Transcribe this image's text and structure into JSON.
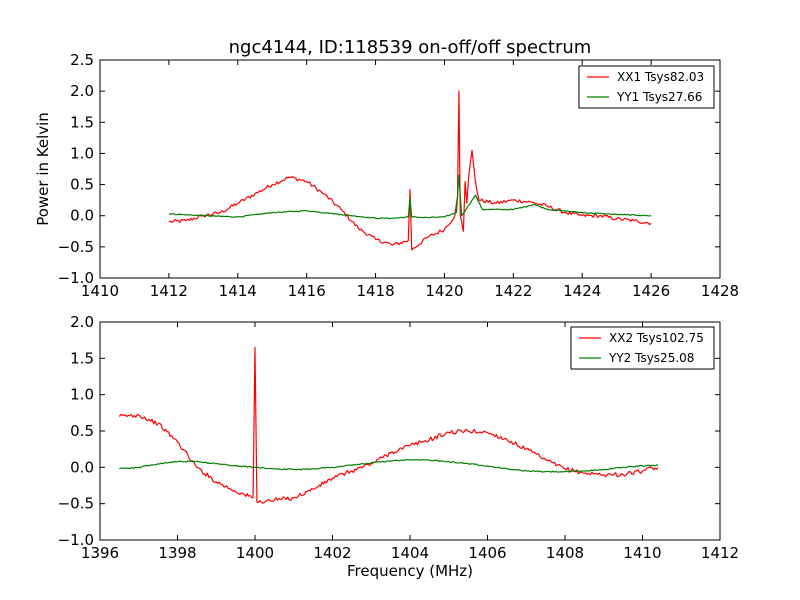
{
  "figure": {
    "title": "ngc4144, ID:118539 on-off/off spectrum",
    "xlabel": "Frequency (MHz)",
    "ylabel": "Power in Kelvin"
  },
  "colors": {
    "red": "#ff0000",
    "green": "#008000"
  },
  "chart_data": [
    {
      "type": "line",
      "title": "ngc4144, ID:118539 on-off/off spectrum",
      "xlabel": "",
      "ylabel": "Power in Kelvin",
      "xlim": [
        1410,
        1428
      ],
      "ylim": [
        -1.0,
        2.5
      ],
      "xticks": [
        1410,
        1412,
        1414,
        1416,
        1418,
        1420,
        1422,
        1424,
        1426,
        1428
      ],
      "yticks": [
        -1.0,
        -0.5,
        0.0,
        0.5,
        1.0,
        1.5,
        2.0,
        2.5
      ],
      "xtick_labels": [
        "1410",
        "1412",
        "1414",
        "1416",
        "1418",
        "1420",
        "1422",
        "1424",
        "1426",
        "1428"
      ],
      "ytick_labels": [
        "−1.0",
        "−0.5",
        "0.0",
        "0.5",
        "1.0",
        "1.5",
        "2.0",
        "2.5"
      ],
      "grid": false,
      "legend_position": "top-right",
      "series": [
        {
          "name": "XX1 Tsys82.03",
          "color": "#ff0000",
          "x": [
            1412.0,
            1412.5,
            1413.0,
            1413.5,
            1414.0,
            1414.5,
            1415.0,
            1415.5,
            1416.0,
            1416.5,
            1417.0,
            1417.5,
            1418.0,
            1418.5,
            1418.95,
            1419.0,
            1419.05,
            1419.5,
            1420.0,
            1420.3,
            1420.38,
            1420.42,
            1420.46,
            1420.55,
            1420.6,
            1420.65,
            1420.7,
            1420.8,
            1420.9,
            1421.0,
            1421.5,
            1422.0,
            1422.5,
            1423.0,
            1423.5,
            1424.0,
            1424.5,
            1425.0,
            1425.5,
            1426.0
          ],
          "y": [
            -0.1,
            -0.08,
            0.0,
            0.05,
            0.2,
            0.35,
            0.5,
            0.62,
            0.55,
            0.35,
            0.1,
            -0.2,
            -0.38,
            -0.47,
            -0.4,
            0.42,
            -0.55,
            -0.35,
            -0.22,
            0.0,
            0.3,
            2.0,
            0.0,
            -0.25,
            0.55,
            0.2,
            0.6,
            1.05,
            0.55,
            0.25,
            0.2,
            0.25,
            0.22,
            0.15,
            0.05,
            0.0,
            0.0,
            -0.05,
            -0.08,
            -0.12
          ]
        },
        {
          "name": "YY1 Tsys27.66",
          "color": "#008000",
          "x": [
            1412.0,
            1413.0,
            1414.0,
            1415.0,
            1416.0,
            1417.0,
            1418.0,
            1418.5,
            1418.95,
            1419.0,
            1419.05,
            1419.5,
            1420.0,
            1420.35,
            1420.42,
            1420.5,
            1420.9,
            1421.1,
            1422.0,
            1422.6,
            1423.0,
            1424.0,
            1425.0,
            1426.0
          ],
          "y": [
            0.03,
            0.0,
            -0.02,
            0.05,
            0.08,
            0.02,
            -0.04,
            -0.04,
            -0.02,
            0.28,
            -0.02,
            -0.03,
            -0.02,
            0.05,
            0.65,
            0.0,
            0.33,
            0.1,
            0.1,
            0.18,
            0.1,
            0.05,
            0.02,
            0.0
          ]
        }
      ]
    },
    {
      "type": "line",
      "title": "",
      "xlabel": "Frequency (MHz)",
      "ylabel": "",
      "xlim": [
        1396,
        1412
      ],
      "ylim": [
        -1.0,
        2.0
      ],
      "xticks": [
        1396,
        1398,
        1400,
        1402,
        1404,
        1406,
        1408,
        1410,
        1412
      ],
      "yticks": [
        -1.0,
        -0.5,
        0.0,
        0.5,
        1.0,
        1.5,
        2.0
      ],
      "xtick_labels": [
        "1396",
        "1398",
        "1400",
        "1402",
        "1404",
        "1406",
        "1408",
        "1410",
        "1412"
      ],
      "ytick_labels": [
        "−1.0",
        "−0.5",
        "0.0",
        "0.5",
        "1.0",
        "1.5",
        "2.0"
      ],
      "grid": false,
      "legend_position": "top-right",
      "series": [
        {
          "name": "XX2 Tsys102.75",
          "color": "#ff0000",
          "x": [
            1396.5,
            1397.0,
            1397.5,
            1398.0,
            1398.5,
            1399.0,
            1399.5,
            1399.95,
            1400.0,
            1400.05,
            1400.5,
            1401.0,
            1401.5,
            1402.0,
            1402.5,
            1403.0,
            1403.5,
            1404.0,
            1404.5,
            1405.0,
            1405.5,
            1406.0,
            1406.5,
            1407.0,
            1407.5,
            1408.0,
            1408.5,
            1409.0,
            1409.5,
            1410.0,
            1410.4
          ],
          "y": [
            0.7,
            0.72,
            0.6,
            0.35,
            0.0,
            -0.2,
            -0.33,
            -0.42,
            1.65,
            -0.48,
            -0.45,
            -0.42,
            -0.3,
            -0.15,
            -0.05,
            0.05,
            0.2,
            0.3,
            0.38,
            0.48,
            0.5,
            0.48,
            0.38,
            0.25,
            0.1,
            -0.02,
            -0.08,
            -0.1,
            -0.1,
            -0.05,
            0.0
          ]
        },
        {
          "name": "YY2 Tsys25.08",
          "color": "#008000",
          "x": [
            1396.5,
            1397.0,
            1397.5,
            1398.0,
            1398.5,
            1399.0,
            1399.5,
            1400.0,
            1400.5,
            1401.0,
            1401.5,
            1402.0,
            1402.5,
            1403.0,
            1403.5,
            1404.0,
            1404.5,
            1405.0,
            1405.5,
            1406.0,
            1406.5,
            1407.0,
            1407.5,
            1408.0,
            1408.5,
            1409.0,
            1409.5,
            1410.0,
            1410.4
          ],
          "y": [
            -0.02,
            0.0,
            0.05,
            0.08,
            0.08,
            0.05,
            0.02,
            0.0,
            -0.02,
            -0.03,
            -0.02,
            0.0,
            0.03,
            0.06,
            0.09,
            0.1,
            0.1,
            0.08,
            0.05,
            0.02,
            -0.02,
            -0.05,
            -0.06,
            -0.06,
            -0.05,
            -0.03,
            0.0,
            0.02,
            0.03
          ]
        }
      ]
    }
  ]
}
